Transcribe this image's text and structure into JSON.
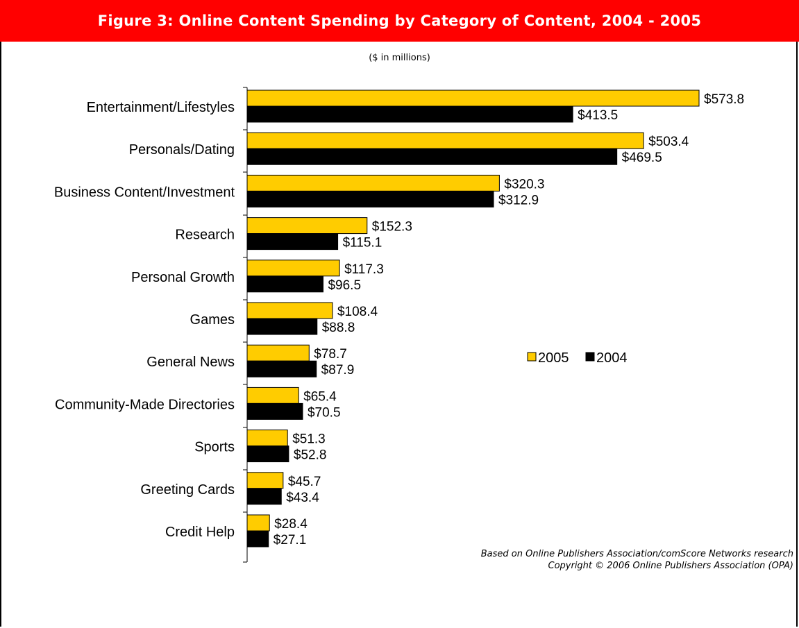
{
  "title": "Figure 3: Online Content Spending by Category of Content, 2004 - 2005",
  "subtitle": "($ in millions)",
  "source_lines": [
    "Based on Online Publishers Association/comScore Networks research",
    "Copyright © 2006 Online Publishers Association (OPA)"
  ],
  "colors": {
    "title_bg": "#ff0000",
    "series_2005": "#ffcc00",
    "series_2004": "#000000"
  },
  "chart_data": {
    "type": "bar",
    "orientation": "horizontal",
    "title": "Figure 3: Online Content Spending by Category of Content, 2004 - 2005",
    "subtitle": "($ in millions)",
    "xlabel": "",
    "ylabel": "",
    "xlim": [
      0,
      600
    ],
    "grid": false,
    "legend_position": "right-middle",
    "categories": [
      "Entertainment/Lifestyles",
      "Personals/Dating",
      "Business Content/Investment",
      "Research",
      "Personal Growth",
      "Games",
      "General News",
      "Community-Made Directories",
      "Sports",
      "Greeting Cards",
      "Credit Help"
    ],
    "series": [
      {
        "name": "2005",
        "values": [
          573.8,
          503.4,
          320.3,
          152.3,
          117.3,
          108.4,
          78.7,
          65.4,
          51.3,
          45.7,
          28.4
        ],
        "labels": [
          "$573.8",
          "$503.4",
          "$320.3",
          "$152.3",
          "$117.3",
          "$108.4",
          "$78.7",
          "$65.4",
          "$51.3",
          "$45.7",
          "$28.4"
        ]
      },
      {
        "name": "2004",
        "values": [
          413.5,
          469.5,
          312.9,
          115.1,
          96.5,
          88.8,
          87.9,
          70.5,
          52.8,
          43.4,
          27.1
        ],
        "labels": [
          "$413.5",
          "$469.5",
          "$312.9",
          "$115.1",
          "$96.5",
          "$88.8",
          "$87.9",
          "$70.5",
          "$52.8",
          "$43.4",
          "$27.1"
        ]
      }
    ]
  }
}
